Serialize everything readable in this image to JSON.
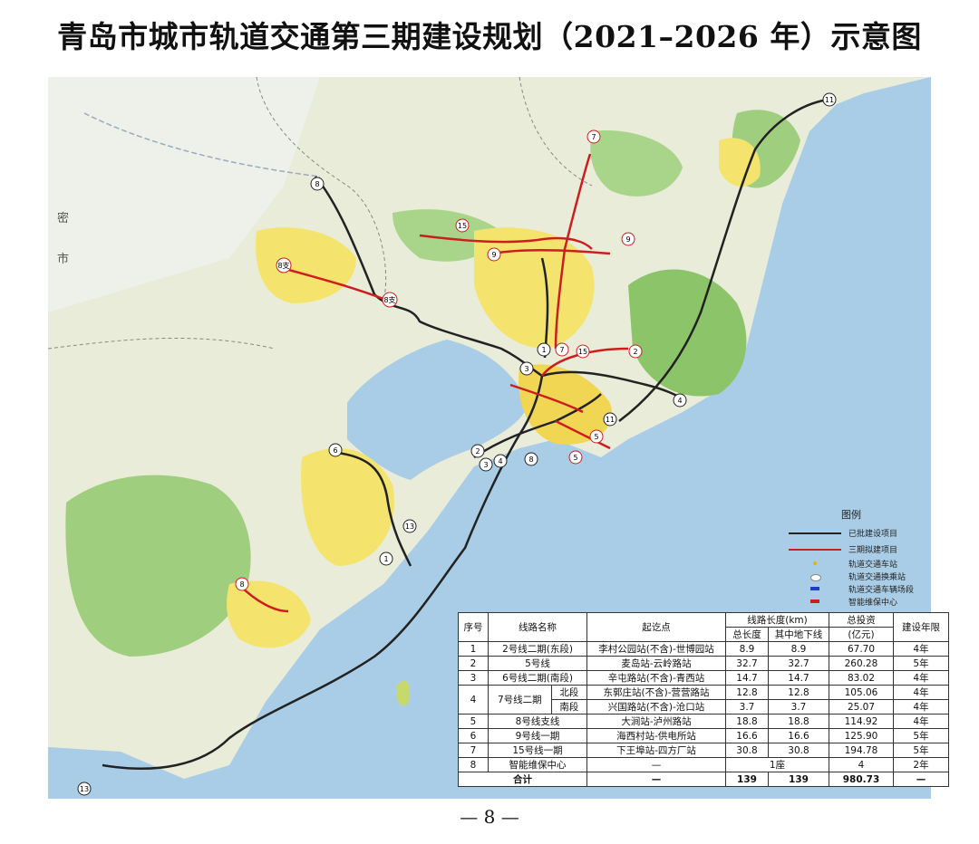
{
  "title": "青岛市城市轨道交通第三期建设规划（2021–2026 年）示意图",
  "page_number": "— 8 —",
  "map": {
    "region_labels": [
      "密",
      "市"
    ],
    "line_badges": [
      "11",
      "7",
      "8",
      "15",
      "9",
      "9",
      "8支",
      "8支",
      "1",
      "7",
      "15",
      "2",
      "3",
      "4",
      "11",
      "5",
      "2",
      "3",
      "4",
      "5",
      "8",
      "6",
      "13",
      "1",
      "8",
      "13"
    ],
    "colors": {
      "sea": "#a9cde6",
      "land": "#e9ecd8",
      "green": "#9fce7e",
      "built": "#f4e46e",
      "approved_line": "#222222",
      "planned_line": "#cc1e1e"
    }
  },
  "legend": {
    "title": "图例",
    "items": [
      {
        "label": "已批建设项目",
        "symbol": "black-line"
      },
      {
        "label": "三期拟建项目",
        "symbol": "red-line"
      },
      {
        "label": "轨道交通车站",
        "symbol": "station-dot"
      },
      {
        "label": "轨道交通换乘站",
        "symbol": "transfer-oval"
      },
      {
        "label": "轨道交通车辆场段",
        "symbol": "depot-blue"
      },
      {
        "label": "智能维保中心",
        "symbol": "maintenance-red"
      }
    ]
  },
  "table": {
    "headers": {
      "no": "序号",
      "name": "线路名称",
      "section": "起讫点",
      "length": "线路长度(km)",
      "total_length": "总长度",
      "underground": "其中地下线",
      "investment": "总投资",
      "investment_unit": "(亿元)",
      "period": "建设年限"
    },
    "rows": [
      {
        "no": "1",
        "name": "2号线二期(东段)",
        "section": "李村公园站(不含)-世博园站",
        "total": "8.9",
        "underground": "8.9",
        "investment": "67.70",
        "period": "4年"
      },
      {
        "no": "2",
        "name": "5号线",
        "section": "麦岛站-云岭路站",
        "total": "32.7",
        "underground": "32.7",
        "investment": "260.28",
        "period": "5年"
      },
      {
        "no": "3",
        "name": "6号线二期(南段)",
        "section": "辛屯路站(不含)-青西站",
        "total": "14.7",
        "underground": "14.7",
        "investment": "83.02",
        "period": "4年"
      }
    ],
    "line7": {
      "no": "4",
      "name": "7号线二期",
      "parts": [
        {
          "part": "北段",
          "section": "东郭庄站(不含)-营营路站",
          "total": "12.8",
          "underground": "12.8",
          "investment": "105.06",
          "period": "4年"
        },
        {
          "part": "南段",
          "section": "兴国路站(不含)-沧口站",
          "total": "3.7",
          "underground": "3.7",
          "investment": "25.07",
          "period": "4年"
        }
      ]
    },
    "rows2": [
      {
        "no": "5",
        "name": "8号线支线",
        "section": "大涧站-泸州路站",
        "total": "18.8",
        "underground": "18.8",
        "investment": "114.92",
        "period": "4年"
      },
      {
        "no": "6",
        "name": "9号线一期",
        "section": "海西村站-供电所站",
        "total": "16.6",
        "underground": "16.6",
        "investment": "125.90",
        "period": "5年"
      },
      {
        "no": "7",
        "name": "15号线一期",
        "section": "下王埠站-四方厂站",
        "total": "30.8",
        "underground": "30.8",
        "investment": "194.78",
        "period": "5年"
      }
    ],
    "row8": {
      "no": "8",
      "name": "智能维保中心",
      "section": "—",
      "length": "1座",
      "investment": "4",
      "period": "2年"
    },
    "total": {
      "label": "合计",
      "section": "—",
      "total": "139",
      "underground": "139",
      "investment": "980.73",
      "period": "—"
    }
  }
}
